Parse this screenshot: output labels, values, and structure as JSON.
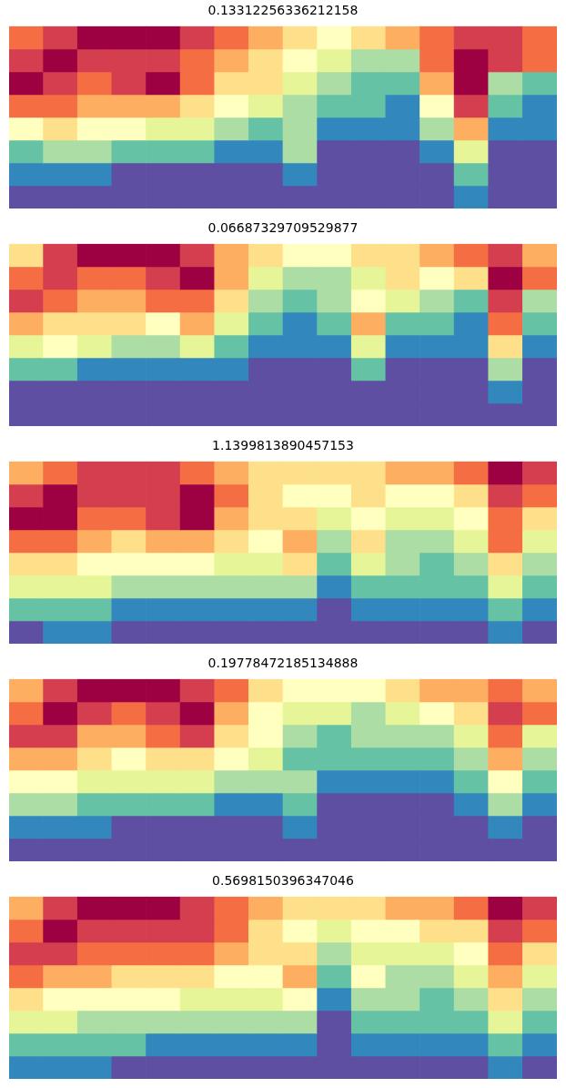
{
  "chart_data": [
    {
      "type": "heatmap",
      "title": "0.13312256336212158",
      "tick_labels": false,
      "cells": [
        [
          8,
          9,
          10,
          10,
          10,
          9,
          8,
          7,
          6,
          5,
          6,
          7,
          8,
          9,
          9,
          8
        ],
        [
          9,
          10,
          9,
          9,
          9,
          8,
          7,
          6,
          5,
          4,
          3,
          3,
          8,
          10,
          9,
          8
        ],
        [
          10,
          9,
          8,
          9,
          10,
          8,
          6,
          6,
          4,
          3,
          2,
          2,
          7,
          10,
          3,
          2
        ],
        [
          8,
          8,
          7,
          7,
          7,
          6,
          5,
          4,
          3,
          2,
          2,
          1,
          5,
          9,
          2,
          1
        ],
        [
          5,
          6,
          5,
          5,
          4,
          4,
          3,
          2,
          3,
          1,
          1,
          1,
          3,
          7,
          1,
          1
        ],
        [
          2,
          3,
          3,
          2,
          2,
          2,
          1,
          1,
          3,
          0,
          0,
          0,
          1,
          4,
          0,
          0
        ],
        [
          1,
          1,
          1,
          0,
          0,
          0,
          0,
          0,
          1,
          0,
          0,
          0,
          0,
          2,
          0,
          0
        ],
        [
          0,
          0,
          0,
          0,
          0,
          0,
          0,
          0,
          0,
          0,
          0,
          0,
          0,
          1,
          0,
          0
        ]
      ]
    },
    {
      "type": "heatmap",
      "title": "0.06687329709529877",
      "tick_labels": false,
      "cells": [
        [
          6,
          9,
          10,
          10,
          10,
          9,
          7,
          6,
          5,
          5,
          6,
          6,
          7,
          8,
          9,
          7
        ],
        [
          8,
          9,
          8,
          8,
          9,
          10,
          7,
          4,
          3,
          3,
          4,
          6,
          5,
          6,
          10,
          8
        ],
        [
          9,
          8,
          7,
          7,
          8,
          8,
          6,
          3,
          2,
          3,
          5,
          4,
          3,
          2,
          9,
          3
        ],
        [
          7,
          6,
          6,
          6,
          5,
          7,
          4,
          2,
          1,
          2,
          7,
          2,
          2,
          1,
          8,
          2
        ],
        [
          4,
          5,
          4,
          3,
          3,
          4,
          2,
          1,
          1,
          1,
          4,
          1,
          1,
          1,
          6,
          1
        ],
        [
          2,
          2,
          1,
          1,
          1,
          1,
          1,
          0,
          0,
          0,
          2,
          0,
          0,
          0,
          3,
          0
        ],
        [
          0,
          0,
          0,
          0,
          0,
          0,
          0,
          0,
          0,
          0,
          0,
          0,
          0,
          0,
          1,
          0
        ],
        [
          0,
          0,
          0,
          0,
          0,
          0,
          0,
          0,
          0,
          0,
          0,
          0,
          0,
          0,
          0,
          0
        ]
      ]
    },
    {
      "type": "heatmap",
      "title": "1.1399813890457153",
      "tick_labels": false,
      "cells": [
        [
          7,
          8,
          9,
          9,
          9,
          8,
          7,
          6,
          6,
          6,
          6,
          7,
          7,
          8,
          10,
          9
        ],
        [
          9,
          10,
          9,
          9,
          9,
          10,
          8,
          6,
          5,
          5,
          6,
          5,
          5,
          6,
          9,
          8
        ],
        [
          10,
          10,
          8,
          8,
          9,
          10,
          7,
          6,
          6,
          4,
          5,
          4,
          4,
          5,
          8,
          6
        ],
        [
          8,
          8,
          7,
          6,
          7,
          7,
          6,
          5,
          7,
          3,
          6,
          3,
          3,
          4,
          8,
          4
        ],
        [
          6,
          6,
          5,
          5,
          5,
          5,
          4,
          4,
          6,
          2,
          4,
          3,
          2,
          3,
          6,
          3
        ],
        [
          4,
          4,
          4,
          3,
          3,
          3,
          3,
          3,
          3,
          1,
          2,
          2,
          2,
          2,
          4,
          2
        ],
        [
          2,
          2,
          2,
          1,
          1,
          1,
          1,
          1,
          1,
          0,
          1,
          1,
          1,
          1,
          2,
          1
        ],
        [
          0,
          1,
          1,
          0,
          0,
          0,
          0,
          0,
          0,
          0,
          0,
          0,
          0,
          0,
          1,
          0
        ]
      ]
    },
    {
      "type": "heatmap",
      "title": "0.19778472185134888",
      "tick_labels": false,
      "cells": [
        [
          7,
          9,
          10,
          10,
          10,
          9,
          8,
          6,
          5,
          5,
          5,
          6,
          7,
          7,
          8,
          7
        ],
        [
          8,
          10,
          9,
          8,
          9,
          10,
          7,
          5,
          4,
          4,
          3,
          4,
          5,
          6,
          9,
          8
        ],
        [
          9,
          9,
          7,
          7,
          8,
          9,
          6,
          5,
          3,
          2,
          3,
          3,
          3,
          4,
          8,
          4
        ],
        [
          7,
          7,
          6,
          5,
          6,
          6,
          5,
          4,
          2,
          2,
          2,
          2,
          2,
          3,
          7,
          3
        ],
        [
          5,
          5,
          4,
          4,
          4,
          4,
          3,
          3,
          3,
          1,
          1,
          1,
          1,
          2,
          5,
          2
        ],
        [
          3,
          3,
          2,
          2,
          2,
          2,
          1,
          1,
          2,
          0,
          0,
          0,
          0,
          1,
          3,
          1
        ],
        [
          1,
          1,
          1,
          0,
          0,
          0,
          0,
          0,
          1,
          0,
          0,
          0,
          0,
          0,
          1,
          0
        ],
        [
          0,
          0,
          0,
          0,
          0,
          0,
          0,
          0,
          0,
          0,
          0,
          0,
          0,
          0,
          0,
          0
        ]
      ]
    },
    {
      "type": "heatmap",
      "title": "0.5698150396347046",
      "tick_labels": false,
      "cells": [
        [
          7,
          9,
          10,
          10,
          10,
          9,
          8,
          7,
          6,
          6,
          6,
          7,
          7,
          8,
          10,
          9
        ],
        [
          8,
          10,
          9,
          9,
          9,
          9,
          8,
          6,
          5,
          4,
          5,
          5,
          6,
          6,
          9,
          8
        ],
        [
          9,
          9,
          8,
          8,
          8,
          8,
          7,
          6,
          6,
          3,
          4,
          4,
          4,
          5,
          8,
          6
        ],
        [
          8,
          7,
          7,
          6,
          6,
          6,
          5,
          5,
          7,
          2,
          5,
          3,
          3,
          4,
          7,
          4
        ],
        [
          6,
          5,
          5,
          5,
          5,
          4,
          4,
          4,
          5,
          1,
          3,
          3,
          2,
          3,
          6,
          3
        ],
        [
          4,
          4,
          3,
          3,
          3,
          3,
          3,
          3,
          3,
          0,
          2,
          2,
          2,
          2,
          4,
          2
        ],
        [
          2,
          2,
          2,
          2,
          1,
          1,
          1,
          1,
          1,
          0,
          1,
          1,
          1,
          1,
          2,
          1
        ],
        [
          1,
          1,
          1,
          0,
          0,
          0,
          0,
          0,
          0,
          0,
          0,
          0,
          0,
          0,
          1,
          0
        ]
      ]
    }
  ]
}
